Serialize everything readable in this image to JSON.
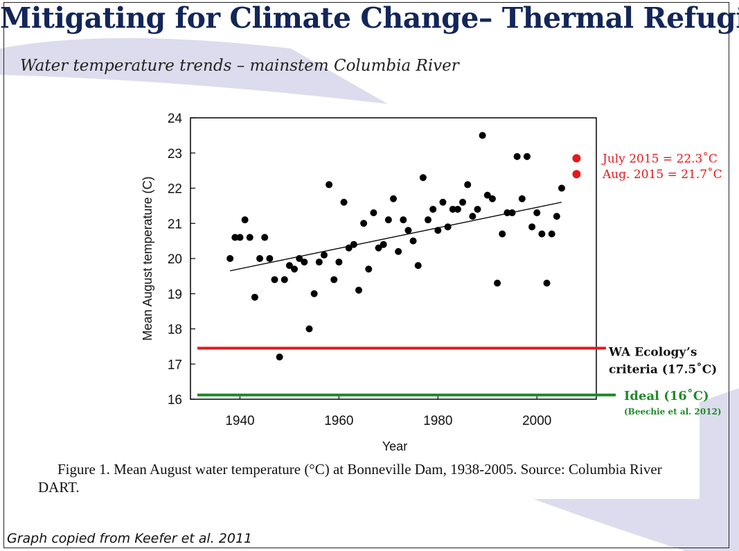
{
  "slide": {
    "title": "Mitigating for Climate Change– Thermal Refugia",
    "subtitle": "Water temperature trends – mainstem Columbia River",
    "caption": "Figure 1.  Mean August water temperature (°C) at Bonneville Dam, 1938-2005.  Source: Columbia River DART.",
    "source_note": "Graph copied from Keefer et al. 2011"
  },
  "colors": {
    "title": "#13265a",
    "red": "#e3191c",
    "green": "#1f8a2b",
    "points": "#000000",
    "decor": "#dcdcee"
  },
  "chart_data": {
    "type": "scatter",
    "xlabel": "Year",
    "ylabel": "Mean August temperature (C)",
    "xlim": [
      1930,
      2012
    ],
    "ylim": [
      16,
      24
    ],
    "xticks": [
      1940,
      1960,
      1980,
      2000
    ],
    "yticks": [
      16,
      17,
      18,
      19,
      20,
      21,
      22,
      23,
      24
    ],
    "points": [
      [
        1938,
        20.0
      ],
      [
        1939,
        20.6
      ],
      [
        1940,
        20.6
      ],
      [
        1941,
        21.1
      ],
      [
        1942,
        20.6
      ],
      [
        1943,
        18.9
      ],
      [
        1944,
        20.0
      ],
      [
        1945,
        20.6
      ],
      [
        1946,
        20.0
      ],
      [
        1947,
        19.4
      ],
      [
        1948,
        17.2
      ],
      [
        1949,
        19.4
      ],
      [
        1950,
        19.8
      ],
      [
        1951,
        19.7
      ],
      [
        1952,
        20.0
      ],
      [
        1953,
        19.9
      ],
      [
        1954,
        18.0
      ],
      [
        1955,
        19.0
      ],
      [
        1956,
        19.9
      ],
      [
        1957,
        20.1
      ],
      [
        1958,
        22.1
      ],
      [
        1959,
        19.4
      ],
      [
        1960,
        19.9
      ],
      [
        1961,
        21.6
      ],
      [
        1962,
        20.3
      ],
      [
        1963,
        20.4
      ],
      [
        1964,
        19.1
      ],
      [
        1965,
        21.0
      ],
      [
        1966,
        19.7
      ],
      [
        1967,
        21.3
      ],
      [
        1968,
        20.3
      ],
      [
        1969,
        20.4
      ],
      [
        1970,
        21.1
      ],
      [
        1971,
        21.7
      ],
      [
        1972,
        20.2
      ],
      [
        1973,
        21.1
      ],
      [
        1974,
        20.8
      ],
      [
        1975,
        20.5
      ],
      [
        1976,
        19.8
      ],
      [
        1977,
        22.3
      ],
      [
        1978,
        21.1
      ],
      [
        1979,
        21.4
      ],
      [
        1980,
        20.8
      ],
      [
        1981,
        21.6
      ],
      [
        1982,
        20.9
      ],
      [
        1983,
        21.4
      ],
      [
        1984,
        21.4
      ],
      [
        1985,
        21.6
      ],
      [
        1986,
        22.1
      ],
      [
        1987,
        21.2
      ],
      [
        1988,
        21.4
      ],
      [
        1989,
        23.5
      ],
      [
        1990,
        21.8
      ],
      [
        1991,
        21.7
      ],
      [
        1992,
        19.3
      ],
      [
        1993,
        20.7
      ],
      [
        1994,
        21.3
      ],
      [
        1995,
        21.3
      ],
      [
        1996,
        22.9
      ],
      [
        1997,
        21.7
      ],
      [
        1998,
        22.9
      ],
      [
        1999,
        20.9
      ],
      [
        2000,
        21.3
      ],
      [
        2001,
        20.7
      ],
      [
        2002,
        19.3
      ],
      [
        2003,
        20.7
      ],
      [
        2004,
        21.2
      ],
      [
        2005,
        22.0
      ]
    ],
    "trendline": [
      [
        1938,
        19.65
      ],
      [
        2005,
        21.6
      ]
    ],
    "highlights": [
      {
        "label": "July 2015 = 22.3˚C",
        "x": 2008,
        "y": 22.85
      },
      {
        "label": "Aug. 2015 = 21.7˚C",
        "x": 2008,
        "y": 22.4
      }
    ],
    "reference_lines": [
      {
        "name": "criteria",
        "y": 17.45,
        "label_lines": [
          "WA Ecology’s",
          "criteria  (17.5˚C)"
        ]
      },
      {
        "name": "ideal",
        "y": 16.12,
        "label_lines": [
          "Ideal (16˚C)"
        ],
        "sublabel": "(Beechie et al. 2012)"
      }
    ]
  }
}
